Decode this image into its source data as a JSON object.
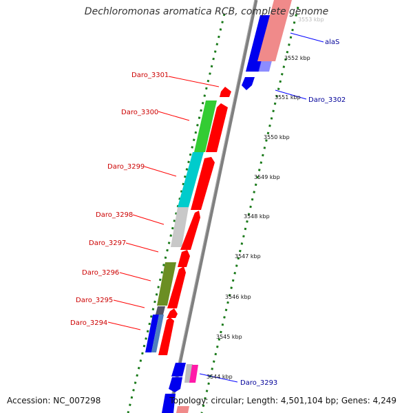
{
  "title": "Dechloromonas aromatica RCB, complete genome",
  "footer": {
    "accession": "Accession: NC_007298",
    "topology": "Topology: circular; Length: 4,501,104 bp; Genes: 4,249"
  },
  "colors": {
    "forward_gene": "#ff0000",
    "reverse_gene": "#0000ff",
    "left_label": "#cc0000",
    "right_label": "#000099",
    "backbone": "#808080",
    "tick": "#1a7a1a"
  },
  "scale_labels": [
    "3553 kbp",
    "3552 kbp",
    "3551 kbp",
    "3550 kbp",
    "3549 kbp",
    "3548 kbp",
    "3547 kbp",
    "3546 kbp",
    "3545 kbp",
    "3544 kbp"
  ],
  "left_genes": [
    "Daro_3301",
    "Daro_3300",
    "Daro_3299",
    "Daro_3298",
    "Daro_3297",
    "Daro_3296",
    "Daro_3295",
    "Daro_3294"
  ],
  "right_genes": [
    "alaS",
    "Daro_3302",
    "Daro_3293"
  ]
}
